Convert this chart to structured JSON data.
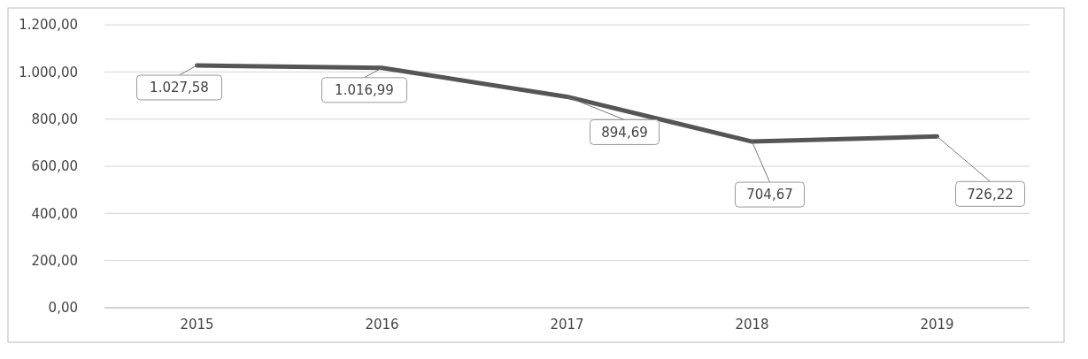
{
  "chart_data": {
    "type": "line",
    "categories": [
      "2015",
      "2016",
      "2017",
      "2018",
      "2019"
    ],
    "series": [
      {
        "color": "#555555",
        "values": [
          1027.58,
          1016.99,
          894.69,
          704.67,
          726.22
        ]
      }
    ],
    "value_labels": [
      "1.027,58",
      "1.016,99",
      "894,69",
      "704,67",
      "726,22"
    ],
    "ylim": [
      0,
      1200
    ],
    "yticks": [
      {
        "value": 0,
        "label": "0,00"
      },
      {
        "value": 200,
        "label": "200,00"
      },
      {
        "value": 400,
        "label": "400,00"
      },
      {
        "value": 600,
        "label": "600,00"
      },
      {
        "value": 800,
        "label": "800,00"
      },
      {
        "value": 1000,
        "label": "1.000,00"
      },
      {
        "value": 1200,
        "label": "1.200,00"
      }
    ],
    "grid": "y",
    "marker": "none",
    "line_style": "solid"
  }
}
